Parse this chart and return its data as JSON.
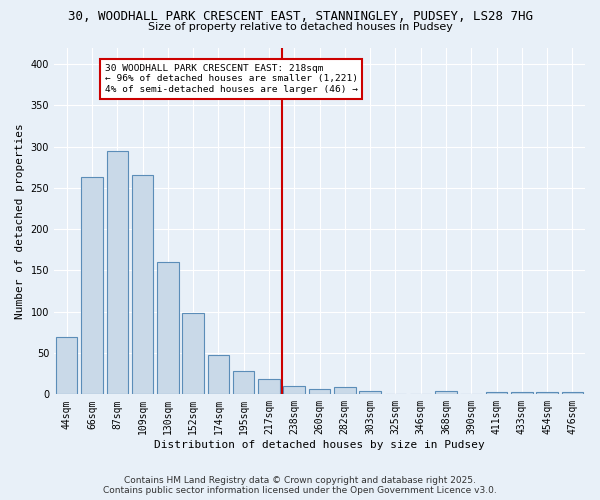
{
  "title1": "30, WOODHALL PARK CRESCENT EAST, STANNINGLEY, PUDSEY, LS28 7HG",
  "title2": "Size of property relative to detached houses in Pudsey",
  "xlabel": "Distribution of detached houses by size in Pudsey",
  "ylabel": "Number of detached properties",
  "categories": [
    "44sqm",
    "66sqm",
    "87sqm",
    "109sqm",
    "130sqm",
    "152sqm",
    "174sqm",
    "195sqm",
    "217sqm",
    "238sqm",
    "260sqm",
    "282sqm",
    "303sqm",
    "325sqm",
    "346sqm",
    "368sqm",
    "390sqm",
    "411sqm",
    "433sqm",
    "454sqm",
    "476sqm"
  ],
  "values": [
    70,
    263,
    295,
    265,
    160,
    99,
    48,
    28,
    19,
    10,
    6,
    9,
    4,
    1,
    0,
    4,
    0,
    3,
    3,
    3,
    3
  ],
  "bar_color": "#c9d9e8",
  "bar_edge_color": "#5b8db8",
  "vline_idx": 8,
  "vline_color": "#cc0000",
  "annotation_text": "30 WOODHALL PARK CRESCENT EAST: 218sqm\n← 96% of detached houses are smaller (1,221)\n4% of semi-detached houses are larger (46) →",
  "annotation_box_color": "#ffffff",
  "annotation_box_edge": "#cc0000",
  "ylim": [
    0,
    420
  ],
  "yticks": [
    0,
    50,
    100,
    150,
    200,
    250,
    300,
    350,
    400
  ],
  "footer1": "Contains HM Land Registry data © Crown copyright and database right 2025.",
  "footer2": "Contains public sector information licensed under the Open Government Licence v3.0.",
  "bg_color": "#e8f0f8",
  "title1_fontsize": 9,
  "title2_fontsize": 8,
  "tick_fontsize": 7,
  "label_fontsize": 8,
  "footer_fontsize": 6.5
}
